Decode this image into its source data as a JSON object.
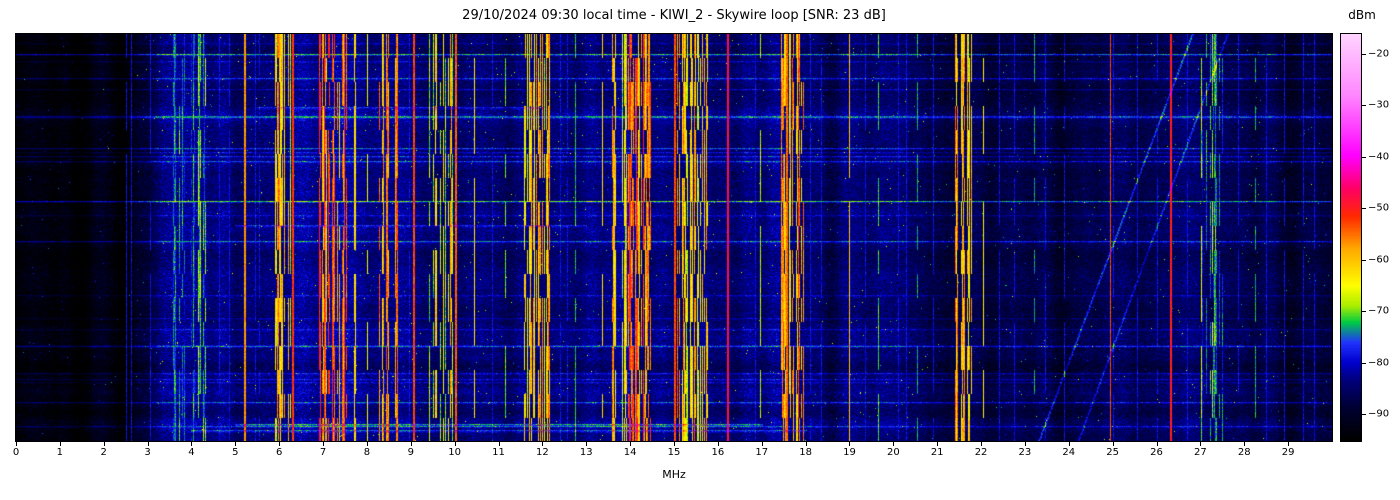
{
  "chart_data": {
    "type": "heatmap",
    "subtype": "hf-spectrum-waterfall",
    "title": "29/10/2024 09:30 local time - KIWI_2 - Skywire loop [SNR: 23 dB]",
    "datetime_label": "29/10/2024 09:30 local time",
    "receiver": "KIWI_2",
    "antenna": "Skywire loop",
    "snr_db": 23,
    "xlabel": "MHz",
    "colorbar_label": "dBm",
    "x_range_mhz": [
      0,
      30
    ],
    "x_ticks": [
      0,
      1,
      2,
      3,
      4,
      5,
      6,
      7,
      8,
      9,
      10,
      11,
      12,
      13,
      14,
      15,
      16,
      17,
      18,
      19,
      20,
      21,
      22,
      23,
      24,
      25,
      26,
      27,
      28,
      29
    ],
    "colorbar_ticks": [
      -20,
      -30,
      -40,
      -50,
      -60,
      -70,
      -80,
      -90
    ],
    "value_range_dbm": [
      -95,
      -16
    ],
    "colormap_stops": [
      [
        0.0,
        "#000000"
      ],
      [
        0.08,
        "#000033"
      ],
      [
        0.15,
        "#000080"
      ],
      [
        0.19,
        "#0000cc"
      ],
      [
        0.24,
        "#2233ff"
      ],
      [
        0.29,
        "#00cc44"
      ],
      [
        0.33,
        "#aaee00"
      ],
      [
        0.38,
        "#ffff00"
      ],
      [
        0.47,
        "#ffaa00"
      ],
      [
        0.55,
        "#ff2a00"
      ],
      [
        0.62,
        "#ff0066"
      ],
      [
        0.7,
        "#ff00ff"
      ],
      [
        0.85,
        "#ff88ff"
      ],
      [
        1.0,
        "#ffd4ff"
      ]
    ],
    "noise_floor_profile_mhz_dbm": [
      [
        0,
        -94
      ],
      [
        2.4,
        -94
      ],
      [
        2.8,
        -89
      ],
      [
        3.2,
        -85
      ],
      [
        3.6,
        -82
      ],
      [
        4.3,
        -83
      ],
      [
        5.0,
        -86
      ],
      [
        5.8,
        -85
      ],
      [
        6.5,
        -83
      ],
      [
        8.8,
        -83
      ],
      [
        9.3,
        -85
      ],
      [
        10.2,
        -84
      ],
      [
        12.4,
        -85
      ],
      [
        13.0,
        -84
      ],
      [
        14.6,
        -83
      ],
      [
        16.4,
        -85
      ],
      [
        18.2,
        -85
      ],
      [
        19.5,
        -86
      ],
      [
        21.0,
        -85
      ],
      [
        22.3,
        -87
      ],
      [
        23.5,
        -88
      ],
      [
        25.5,
        -88
      ],
      [
        27.2,
        -86
      ],
      [
        28.3,
        -88
      ],
      [
        30,
        -89
      ]
    ],
    "broadcast_bands": [
      {
        "from": 3.55,
        "to": 4.3,
        "dbm": -74,
        "density": 0.5
      },
      {
        "from": 5.9,
        "to": 6.25,
        "dbm": -62,
        "density": 0.5
      },
      {
        "from": 6.9,
        "to": 7.55,
        "dbm": -56,
        "density": 0.65
      },
      {
        "from": 8.25,
        "to": 8.7,
        "dbm": -58,
        "density": 0.5
      },
      {
        "from": 9.35,
        "to": 9.95,
        "dbm": -64,
        "density": 0.45
      },
      {
        "from": 11.55,
        "to": 12.15,
        "dbm": -60,
        "density": 0.55
      },
      {
        "from": 13.55,
        "to": 13.9,
        "dbm": -62,
        "density": 0.5
      },
      {
        "from": 13.95,
        "to": 14.45,
        "dbm": -55,
        "density": 0.75
      },
      {
        "from": 15.05,
        "to": 15.85,
        "dbm": -61,
        "density": 0.55
      },
      {
        "from": 17.45,
        "to": 17.95,
        "dbm": -58,
        "density": 0.55
      },
      {
        "from": 21.4,
        "to": 21.8,
        "dbm": -59,
        "density": 0.65
      },
      {
        "from": 26.9,
        "to": 27.5,
        "dbm": -74,
        "density": 0.35
      }
    ],
    "carriers": [
      {
        "mhz": 5.2,
        "dbm": -57,
        "w": 2
      },
      {
        "mhz": 6.3,
        "dbm": -52,
        "w": 2
      },
      {
        "mhz": 7.7,
        "dbm": -62,
        "w": 2,
        "duty": 0.8
      },
      {
        "mhz": 8.0,
        "dbm": -66,
        "w": 1,
        "duty": 0.7
      },
      {
        "mhz": 9.05,
        "dbm": -53,
        "w": 2
      },
      {
        "mhz": 10.0,
        "dbm": -54,
        "w": 2
      },
      {
        "mhz": 10.45,
        "dbm": -63,
        "w": 1,
        "duty": 0.8
      },
      {
        "mhz": 11.15,
        "dbm": -70,
        "w": 1,
        "duty": 0.6
      },
      {
        "mhz": 12.75,
        "dbm": -72,
        "w": 1,
        "duty": 0.7
      },
      {
        "mhz": 13.35,
        "dbm": -62,
        "w": 1,
        "duty": 0.8
      },
      {
        "mhz": 15.0,
        "dbm": -53,
        "w": 2
      },
      {
        "mhz": 16.2,
        "dbm": -48,
        "w": 2
      },
      {
        "mhz": 16.95,
        "dbm": -68,
        "w": 1,
        "duty": 0.7
      },
      {
        "mhz": 17.55,
        "dbm": -55,
        "w": 2
      },
      {
        "mhz": 19.0,
        "dbm": -60,
        "w": 1,
        "duty": 0.85
      },
      {
        "mhz": 19.65,
        "dbm": -71,
        "w": 1,
        "duty": 0.6
      },
      {
        "mhz": 20.55,
        "dbm": -73,
        "w": 1,
        "duty": 0.6
      },
      {
        "mhz": 22.05,
        "dbm": -64,
        "w": 1,
        "duty": 0.7
      },
      {
        "mhz": 23.2,
        "dbm": -73,
        "w": 1,
        "duty": 0.6
      },
      {
        "mhz": 24.95,
        "dbm": -53,
        "w": 1
      },
      {
        "mhz": 26.3,
        "dbm": -50,
        "w": 2
      },
      {
        "mhz": 28.25,
        "dbm": -73,
        "w": 1,
        "duty": 0.6
      }
    ],
    "minor_carriers_mhz": [
      2.5,
      2.62,
      3.05,
      4.62,
      4.85,
      5.45,
      5.55,
      8.95,
      10.85,
      12.4,
      12.55,
      16.85,
      18.1,
      18.35,
      19.35,
      20.1,
      20.3,
      20.9,
      22.4,
      22.75,
      23.45,
      23.9,
      25.0,
      25.55,
      26.0,
      26.7,
      27.85,
      28.5,
      28.9,
      29.35,
      29.6
    ],
    "h_streak_count": 26,
    "strong_streaks": [
      {
        "row_frac": 0.96,
        "amp_db": 9,
        "from_mhz": 5,
        "to_mhz": 17
      },
      {
        "row_frac": 0.975,
        "amp_db": 7,
        "from_mhz": 4,
        "to_mhz": 18
      },
      {
        "row_frac": 0.47,
        "amp_db": 6,
        "from_mhz": 5,
        "to_mhz": 13
      },
      {
        "row_frac": 0.18,
        "amp_db": 6,
        "from_mhz": 5.5,
        "to_mhz": 12
      }
    ],
    "sweeps": [
      {
        "from_mhz": 23.3,
        "to_mhz": 26.8,
        "amp_db": 9
      },
      {
        "from_mhz": 24.2,
        "to_mhz": 27.6,
        "amp_db": 7
      }
    ]
  }
}
